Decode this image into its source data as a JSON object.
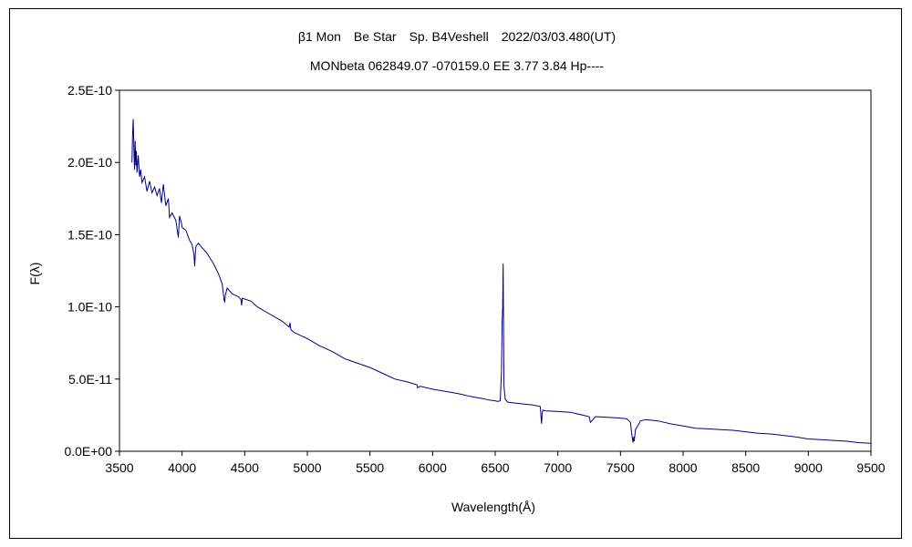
{
  "chart_data": {
    "type": "line",
    "title": "β1 Mon　Be Star　Sp. B4Veshell　2022/03/03.480(UT)",
    "subtitle": "MONbeta 062849.07 -070159.0 EE 3.77 3.84 Hp----",
    "xlabel": "Wavelength(Å)",
    "ylabel": "F(λ)",
    "xlim": [
      3500,
      9500
    ],
    "ylim": [
      0,
      2.5e-10
    ],
    "x_ticks": [
      3500,
      4000,
      4500,
      5000,
      5500,
      6000,
      6500,
      7000,
      7500,
      8000,
      8500,
      9000,
      9500
    ],
    "x_tick_labels": [
      "3500",
      "4000",
      "4500",
      "5000",
      "5500",
      "6000",
      "6500",
      "7000",
      "7500",
      "8000",
      "8500",
      "9000",
      "9500"
    ],
    "y_ticks": [
      0,
      5e-11,
      1e-10,
      1.5e-10,
      2e-10,
      2.5e-10
    ],
    "y_tick_labels": [
      "0.0E+00",
      "5.0E-11",
      "1.0E-10",
      "1.5E-10",
      "2.0E-10",
      "2.5E-10"
    ],
    "grid": false,
    "legend": "none",
    "line_color": "#000080",
    "series": [
      {
        "x": [
          3600,
          3605,
          3610,
          3615,
          3620,
          3625,
          3630,
          3635,
          3640,
          3650,
          3660,
          3670,
          3680,
          3700,
          3720,
          3740,
          3760,
          3780,
          3800,
          3820,
          3835,
          3850,
          3870,
          3890,
          3900,
          3920,
          3950,
          3970,
          3980,
          3995,
          4000,
          4030,
          4060,
          4080,
          4095,
          4101,
          4105,
          4110,
          4130,
          4160,
          4200,
          4250,
          4290,
          4320,
          4335,
          4340,
          4345,
          4360,
          4400,
          4450,
          4470,
          4475,
          4480,
          4550,
          4600,
          4700,
          4800,
          4855,
          4861,
          4870,
          4900,
          5000,
          5100,
          5200,
          5300,
          5400,
          5500,
          5600,
          5700,
          5800,
          5875,
          5880,
          5900,
          6000,
          6100,
          6200,
          6300,
          6400,
          6450,
          6500,
          6520,
          6540,
          6550,
          6555,
          6560,
          6563,
          6566,
          6570,
          6580,
          6600,
          6700,
          6800,
          6860,
          6870,
          6875,
          6880,
          6900,
          7000,
          7100,
          7200,
          7250,
          7260,
          7300,
          7400,
          7500,
          7550,
          7580,
          7590,
          7600,
          7605,
          7610,
          7620,
          7640,
          7660,
          7700,
          7800,
          7900,
          8000,
          8100,
          8200,
          8300,
          8400,
          8500,
          8600,
          8700,
          8800,
          8900,
          9000,
          9100,
          9200,
          9300,
          9400,
          9500
        ],
        "y": [
          2e-10,
          2.2e-10,
          2.3e-10,
          2.1e-10,
          1.95e-10,
          2.15e-10,
          1.98e-10,
          2.08e-10,
          1.93e-10,
          2.05e-10,
          1.9e-10,
          1.95e-10,
          1.86e-10,
          1.9e-10,
          1.8e-10,
          1.87e-10,
          1.79e-10,
          1.83e-10,
          1.77e-10,
          1.82e-10,
          1.72e-10,
          1.85e-10,
          1.7e-10,
          1.75e-10,
          1.62e-10,
          1.65e-10,
          1.6e-10,
          1.48e-10,
          1.63e-10,
          1.58e-10,
          1.55e-10,
          1.53e-10,
          1.46e-10,
          1.43e-10,
          1.36e-10,
          1.28e-10,
          1.36e-10,
          1.42e-10,
          1.44e-10,
          1.41e-10,
          1.37e-10,
          1.3e-10,
          1.23e-10,
          1.16e-10,
          1.05e-10,
          1.03e-10,
          1.08e-10,
          1.13e-10,
          1.09e-10,
          1.07e-10,
          1.05e-10,
          1.01e-10,
          1.06e-10,
          1.04e-10,
          1e-10,
          9.5e-11,
          9e-11,
          8.6e-11,
          8.9e-11,
          8.4e-11,
          8.2e-11,
          7.8e-11,
          7.3e-11,
          6.9e-11,
          6.4e-11,
          6.1e-11,
          5.8e-11,
          5.4e-11,
          5e-11,
          4.8e-11,
          4.6e-11,
          4.4e-11,
          4.5e-11,
          4.3e-11,
          4.15e-11,
          4e-11,
          3.8e-11,
          3.65e-11,
          3.55e-11,
          3.5e-11,
          3.45e-11,
          3.5e-11,
          5.5e-11,
          9e-11,
          1e-10,
          1.3e-10,
          9e-11,
          4.5e-11,
          3.6e-11,
          3.4e-11,
          3.3e-11,
          3.2e-11,
          3.1e-11,
          1.9e-11,
          2.6e-11,
          2.85e-11,
          2.8e-11,
          2.75e-11,
          2.7e-11,
          2.5e-11,
          2.4e-11,
          2e-11,
          2.4e-11,
          2.35e-11,
          2.3e-11,
          2.25e-11,
          2e-11,
          1.2e-11,
          6e-12,
          1e-11,
          7e-12,
          1.5e-11,
          1.8e-11,
          2.1e-11,
          2.2e-11,
          2.1e-11,
          1.9e-11,
          1.75e-11,
          1.6e-11,
          1.55e-11,
          1.5e-11,
          1.45e-11,
          1.35e-11,
          1.25e-11,
          1.2e-11,
          1.1e-11,
          1e-11,
          8.5e-12,
          8e-12,
          7.5e-12,
          7e-12,
          6e-12,
          5.5e-12
        ]
      }
    ]
  }
}
